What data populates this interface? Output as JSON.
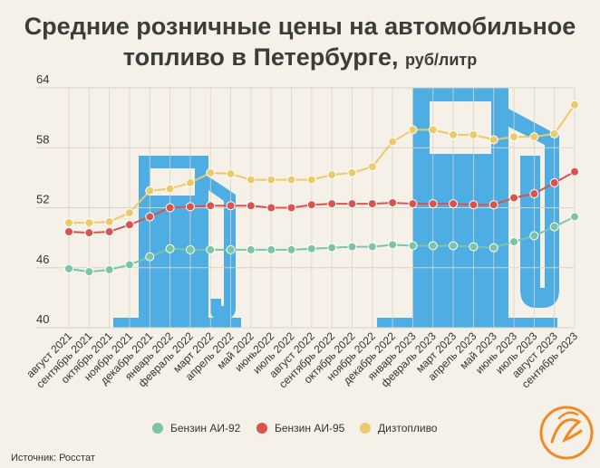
{
  "title": {
    "line1": "Средние розничные цены на автомобильное",
    "line2": "топливо в Петербурге,",
    "unit": "руб/литр"
  },
  "source": "Источник: Росстат",
  "colors": {
    "ai92": "#7dc4a5",
    "ai95": "#d9534f",
    "diesel": "#ecc96a",
    "pump": "#4eaee3",
    "grid": "#d8d3c8",
    "axis_text": "#333333",
    "logo": "#f08a24"
  },
  "chart_data": {
    "type": "line",
    "title": "Средние розничные цены на автомобильное топливо в Петербурге, руб/литр",
    "xlabel": "",
    "ylabel": "руб/литр",
    "ylim": [
      40,
      64
    ],
    "yticks": [
      40,
      46,
      52,
      58,
      64
    ],
    "categories": [
      "август 2021",
      "сентябрь 2021",
      "октябрь 2021",
      "ноябрь 2021",
      "декабрь 2021",
      "январь 2022",
      "февраль 2022",
      "март 2022",
      "апрель 2022",
      "май 2022",
      "июнь2022",
      "июль 2022",
      "август 2022",
      "сентябрь 2022",
      "октябрь 2022",
      "ноябрь 2022",
      "декабрь 2022",
      "январь 2023",
      "февраль 2023",
      "март 2023",
      "апрель 2023",
      "май 2023",
      "июнь 2023",
      "июль 2023",
      "август 2023",
      "сентябрь 2023"
    ],
    "series": [
      {
        "name": "Бензин АИ-92",
        "key": "ai92",
        "values": [
          45.9,
          45.6,
          45.8,
          46.3,
          47.1,
          47.9,
          47.8,
          47.8,
          47.8,
          47.8,
          47.8,
          47.8,
          47.9,
          48.0,
          48.1,
          48.1,
          48.3,
          48.2,
          48.2,
          48.2,
          48.1,
          48.0,
          48.6,
          49.2,
          50.1,
          51.1
        ]
      },
      {
        "name": "Бензин АИ-95",
        "key": "ai95",
        "values": [
          49.6,
          49.5,
          49.6,
          50.3,
          51.1,
          52.0,
          52.1,
          52.2,
          52.2,
          52.2,
          52.0,
          52.0,
          52.3,
          52.4,
          52.4,
          52.4,
          52.5,
          52.4,
          52.4,
          52.4,
          52.3,
          52.3,
          53.0,
          53.4,
          54.5,
          55.6
        ]
      },
      {
        "name": "Дизтопливо",
        "key": "diesel",
        "values": [
          50.5,
          50.5,
          50.6,
          51.5,
          53.7,
          53.9,
          54.5,
          55.5,
          55.4,
          54.8,
          54.8,
          54.8,
          54.8,
          55.3,
          55.5,
          56.1,
          58.6,
          59.8,
          59.8,
          59.3,
          59.3,
          58.8,
          59.1,
          59.1,
          59.4,
          62.3
        ]
      }
    ],
    "legend_position": "bottom-center",
    "grid": true
  }
}
